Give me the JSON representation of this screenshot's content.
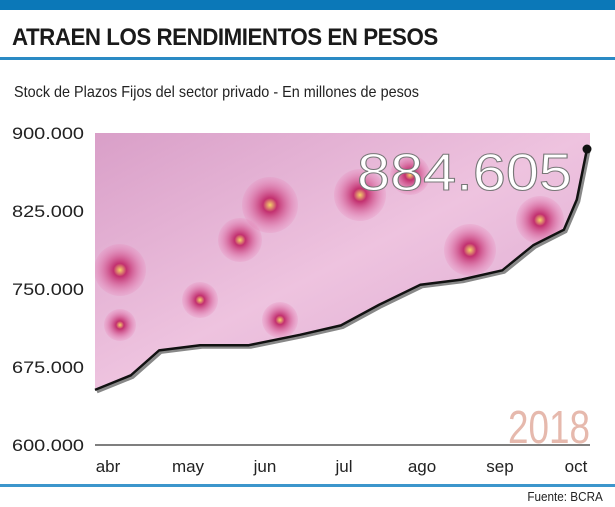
{
  "title": "ATRAEN LOS RENDIMIENTOS EN PESOS",
  "subtitle": "Stock de Plazos Fijos del sector privado -  En millones de pesos",
  "source": "Fuente: BCRA",
  "chart_data": {
    "type": "line",
    "title": "ATRAEN LOS RENDIMIENTOS EN PESOS",
    "ylabel": "En millones de pesos",
    "year_label": "2018",
    "highlight_value": "884.605",
    "ylim": [
      600000,
      900000
    ],
    "yticks": [
      "900.000",
      "825.000",
      "750.000",
      "675.000",
      "600.000"
    ],
    "ytick_values": [
      900000,
      825000,
      750000,
      675000,
      600000
    ],
    "xticks": [
      "abr",
      "may",
      "jun",
      "jul",
      "ago",
      "sep",
      "oct"
    ],
    "xtick_dates": [
      "2018-04-01",
      "2018-05-01",
      "2018-06-01",
      "2018-07-01",
      "2018-08-01",
      "2018-09-01",
      "2018-10-01"
    ],
    "xlim": [
      "2018-03-27",
      "2018-10-05"
    ],
    "grid": false,
    "series": [
      {
        "x": [
          "2018-03-27",
          "2018-04-10",
          "2018-04-21",
          "2018-05-07",
          "2018-05-26",
          "2018-06-15",
          "2018-07-01",
          "2018-07-16",
          "2018-08-01",
          "2018-08-17",
          "2018-09-02",
          "2018-09-14",
          "2018-09-26",
          "2018-10-01",
          "2018-10-05"
        ],
        "y": [
          653000,
          667000,
          691000,
          696000,
          696000,
          706000,
          715000,
          735000,
          754000,
          759000,
          768000,
          792000,
          807000,
          836000,
          884605
        ]
      }
    ],
    "colors": {
      "line": "#111111",
      "background": "#e8b6d6",
      "year": "#e6b9ad"
    }
  }
}
